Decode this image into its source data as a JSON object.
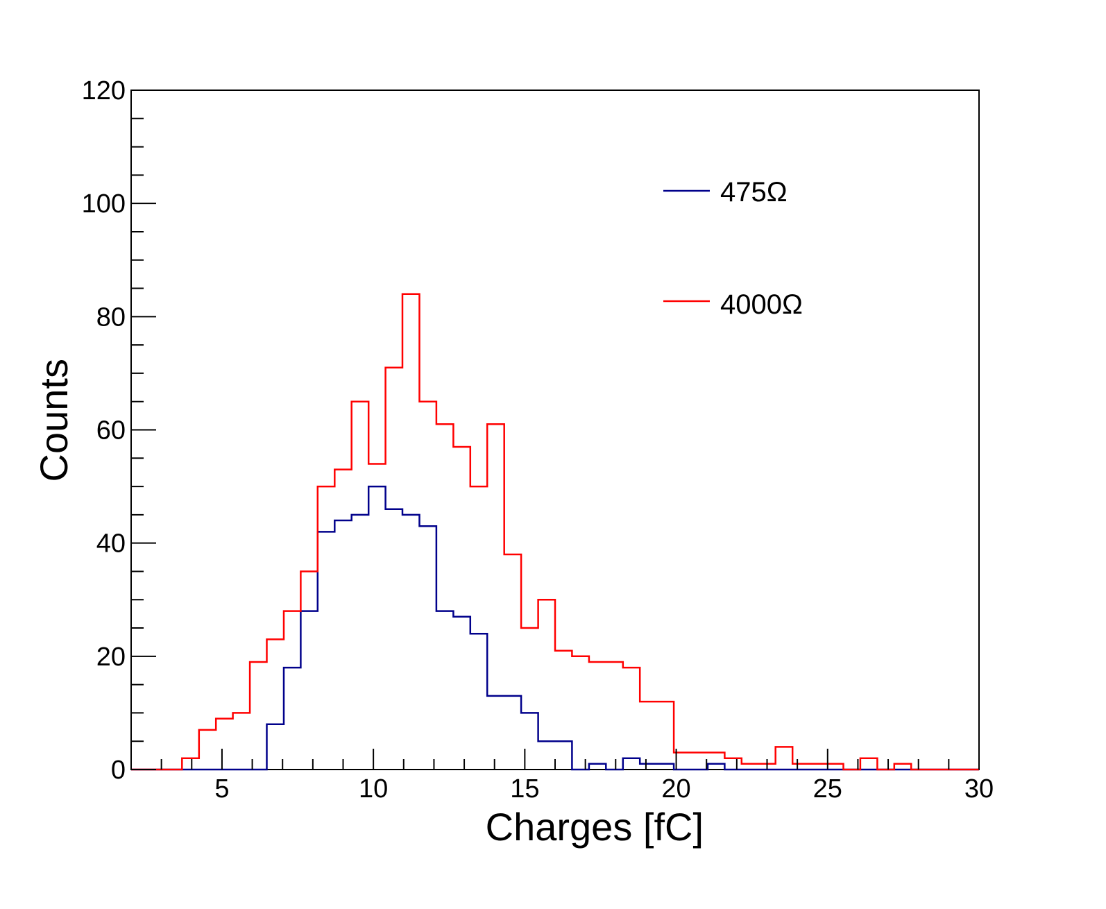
{
  "chart_data": {
    "type": "histogram",
    "xlabel": "Charges [fC]",
    "ylabel": "Counts",
    "xlim": [
      2,
      30
    ],
    "ylim": [
      0,
      120
    ],
    "xticks": [
      5,
      10,
      15,
      20,
      25,
      30
    ],
    "xtick_labels": [
      "5",
      "10",
      "15",
      "20",
      "25",
      "30"
    ],
    "yticks": [
      0,
      20,
      40,
      60,
      80,
      100,
      120
    ],
    "ytick_labels": [
      "0",
      "20",
      "40",
      "60",
      "80",
      "100",
      "120"
    ],
    "grid": false,
    "legend_position": "top-right",
    "bin_edges": [
      2,
      2.56,
      3.12,
      3.68,
      4.24,
      4.8,
      5.36,
      5.92,
      6.48,
      7.04,
      7.6,
      8.16,
      8.72,
      9.28,
      9.84,
      10.4,
      10.96,
      11.52,
      12.08,
      12.64,
      13.2,
      13.76,
      14.32,
      14.88,
      15.44,
      16,
      16.56,
      17.12,
      17.68,
      18.24,
      18.8,
      19.36,
      19.92,
      20.48,
      21.04,
      21.6,
      22.16,
      22.72,
      23.28,
      23.84,
      24.4,
      24.96,
      25.52,
      26.08,
      26.64,
      27.2,
      27.76,
      28.32,
      28.88,
      29.44,
      30
    ],
    "series": [
      {
        "name": "475Ω",
        "color": "#00008b",
        "values": [
          0,
          0,
          0,
          0,
          0,
          0,
          0,
          0,
          8,
          18,
          28,
          42,
          44,
          45,
          50,
          46,
          45,
          43,
          28,
          27,
          24,
          13,
          13,
          10,
          5,
          5,
          0,
          1,
          0,
          2,
          1,
          1,
          0,
          0,
          1,
          0,
          0,
          0,
          0,
          0,
          0,
          0,
          0,
          0,
          0,
          0,
          0,
          0,
          0,
          0
        ]
      },
      {
        "name": "4000Ω",
        "color": "#ff0000",
        "values": [
          0,
          0,
          0,
          2,
          7,
          9,
          10,
          19,
          23,
          28,
          35,
          50,
          53,
          65,
          54,
          71,
          84,
          65,
          61,
          57,
          50,
          61,
          38,
          25,
          30,
          21,
          20,
          19,
          19,
          18,
          12,
          12,
          3,
          3,
          3,
          2,
          1,
          1,
          4,
          1,
          1,
          1,
          0,
          2,
          0,
          1,
          0,
          0,
          0,
          0
        ]
      }
    ]
  }
}
